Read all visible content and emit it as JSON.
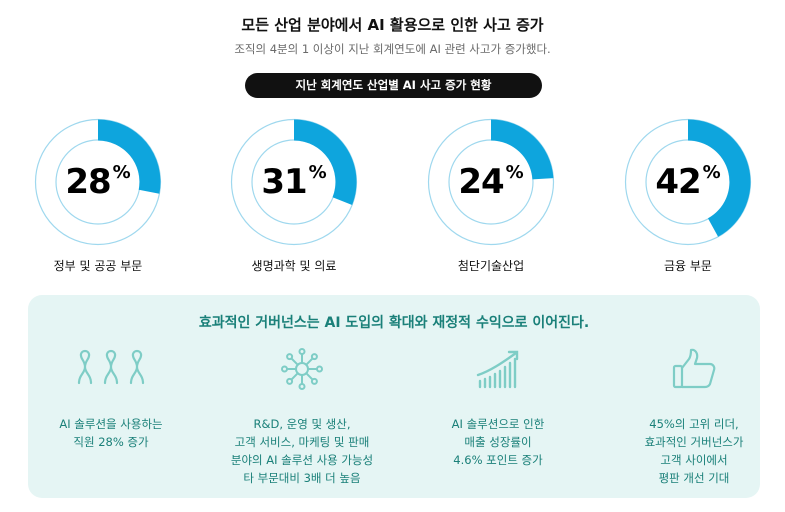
{
  "header": {
    "title": "모든 산업 분야에서 AI 활용으로 인한 사고 증가",
    "subtitle": "조직의 4분의 1 이상이 지난 회계연도에 AI 관련 사고가 증가했다."
  },
  "pill": {
    "label": "지난 회계연도 산업별 AI 사고 증가 현황"
  },
  "colors": {
    "accent": "#0ea5dd",
    "ring": "#9fd8ee",
    "panel_bg": "#e5f5f4",
    "teal": "#1a8079"
  },
  "chart_data": {
    "type": "donut",
    "categories": [
      "정부 및 공공 부문",
      "생명과학 및 의료",
      "첨단기술산업",
      "금융 부문"
    ],
    "values": [
      28,
      31,
      24,
      42
    ],
    "unit": "%"
  },
  "stats": [
    {
      "value": "28",
      "unit": "%",
      "label": "정부 및 공공 부문"
    },
    {
      "value": "31",
      "unit": "%",
      "label": "생명과학 및 의료"
    },
    {
      "value": "24",
      "unit": "%",
      "label": "첨단기술산업"
    },
    {
      "value": "42",
      "unit": "%",
      "label": "금융 부문"
    }
  ],
  "panel": {
    "title": "효과적인 거버넌스는 AI 도입의 확대와 재정적 수익으로 이어진다.",
    "items": [
      {
        "icon": "people-icon",
        "lines": [
          "AI 솔루션을 사용하는",
          "직원 28% 증가"
        ]
      },
      {
        "icon": "network-icon",
        "lines": [
          "R&D, 운영 및 생산,",
          "고객 서비스, 마케팅 및 판매",
          "분야의 AI 솔루션 사용 가능성",
          "타 부문대비 3배 더 높음"
        ]
      },
      {
        "icon": "growth-chart-icon",
        "lines": [
          "AI 솔루션으로 인한",
          "매출 성장률이",
          "4.6% 포인트 증가"
        ]
      },
      {
        "icon": "thumbs-up-icon",
        "lines": [
          "45%의 고위 리더,",
          "효과적인 거버넌스가",
          "고객 사이에서",
          "평판 개선 기대"
        ]
      }
    ]
  }
}
